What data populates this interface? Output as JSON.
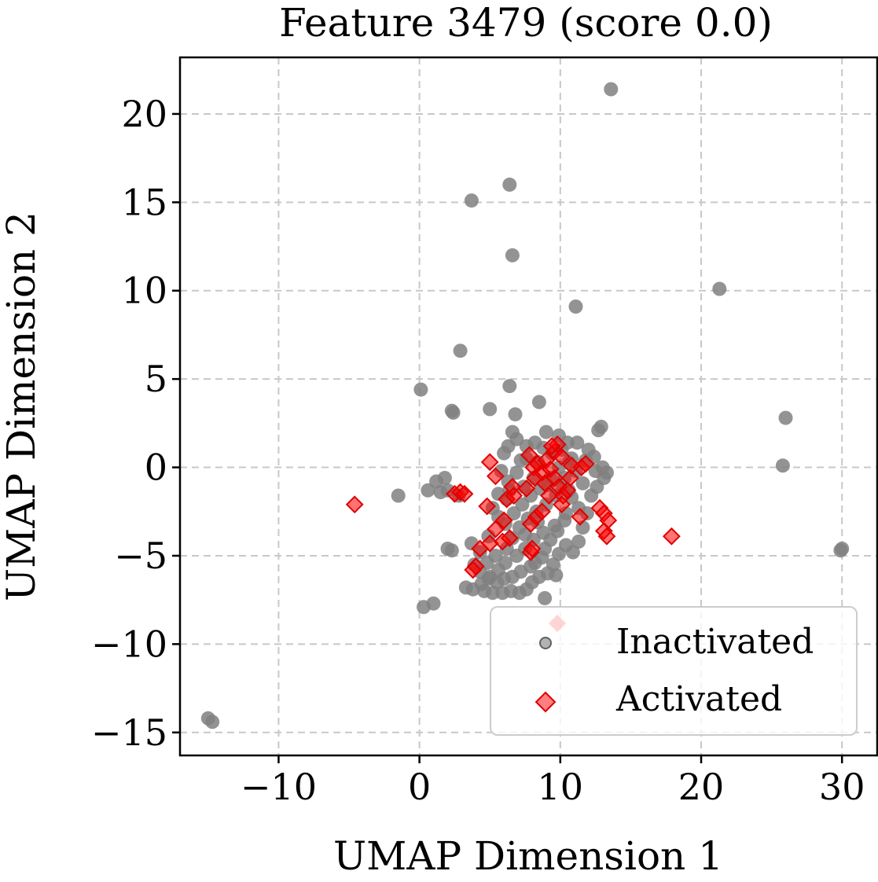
{
  "chart_data": {
    "type": "scatter",
    "title": "Feature 3479 (score 0.0)",
    "xlabel": "UMAP Dimension 1",
    "ylabel": "UMAP Dimension 2",
    "xlim": [
      -17,
      32.5
    ],
    "ylim": [
      -16.3,
      23.2
    ],
    "xticks": [
      -10,
      0,
      10,
      20,
      30
    ],
    "yticks": [
      -15,
      -10,
      -5,
      0,
      5,
      10,
      15,
      20
    ],
    "xtick_labels": [
      "−10",
      "0",
      "10",
      "20",
      "30"
    ],
    "ytick_labels": [
      "−15",
      "−10",
      "−5",
      "0",
      "5",
      "10",
      "15",
      "20"
    ],
    "grid": true,
    "legend_position": "lower-right",
    "series": [
      {
        "name": "Inactivated",
        "marker": "circle",
        "color": "#808080",
        "points": [
          [
            13.6,
            21.4
          ],
          [
            6.4,
            16.0
          ],
          [
            3.7,
            15.1
          ],
          [
            6.6,
            12.0
          ],
          [
            21.3,
            10.1
          ],
          [
            11.1,
            9.1
          ],
          [
            2.9,
            6.6
          ],
          [
            0.1,
            4.4
          ],
          [
            6.4,
            4.6
          ],
          [
            2.3,
            3.2
          ],
          [
            2.4,
            3.1
          ],
          [
            5.0,
            3.3
          ],
          [
            6.8,
            3.0
          ],
          [
            8.5,
            3.7
          ],
          [
            26.0,
            2.8
          ],
          [
            25.8,
            0.1
          ],
          [
            30.0,
            -4.6
          ],
          [
            29.9,
            -4.7
          ],
          [
            -15.0,
            -14.2
          ],
          [
            -14.7,
            -14.4
          ],
          [
            -1.5,
            -1.6
          ],
          [
            0.3,
            -7.9
          ],
          [
            1.0,
            -7.7
          ],
          [
            9.7,
            -6.1
          ],
          [
            8.9,
            -7.4
          ],
          [
            2.0,
            -4.6
          ],
          [
            2.3,
            -4.7
          ],
          [
            3.7,
            -4.3
          ],
          [
            1.8,
            -0.6
          ],
          [
            1.2,
            -0.8
          ],
          [
            0.6,
            -1.3
          ],
          [
            1.5,
            -1.4
          ],
          [
            2.0,
            -1.3
          ],
          [
            2.8,
            -1.6
          ],
          [
            12.7,
            2.1
          ],
          [
            12.9,
            2.3
          ],
          [
            13.0,
            0.0
          ],
          [
            12.5,
            -0.2
          ],
          [
            13.3,
            -0.3
          ],
          [
            12.0,
            1.0
          ],
          [
            11.2,
            1.4
          ],
          [
            10.8,
            0.5
          ],
          [
            6.6,
            2.0
          ],
          [
            6.9,
            1.6
          ],
          [
            6.3,
            1.2
          ],
          [
            7.2,
            0.4
          ],
          [
            6.0,
            0.8
          ],
          [
            5.8,
            -0.2
          ],
          [
            6.3,
            -0.8
          ],
          [
            7.4,
            -1.1
          ],
          [
            8.1,
            -0.6
          ],
          [
            9.1,
            -1.0
          ],
          [
            10.3,
            -0.6
          ],
          [
            10.8,
            -1.7
          ],
          [
            11.3,
            -2.3
          ],
          [
            10.4,
            -2.6
          ],
          [
            9.6,
            -3.3
          ],
          [
            8.8,
            -3.7
          ],
          [
            8.1,
            -4.1
          ],
          [
            7.5,
            -4.6
          ],
          [
            6.9,
            -5.0
          ],
          [
            6.1,
            -5.4
          ],
          [
            5.6,
            -5.8
          ],
          [
            5.0,
            -6.2
          ],
          [
            4.4,
            -6.6
          ],
          [
            3.8,
            -6.9
          ],
          [
            3.3,
            -6.8
          ],
          [
            4.6,
            -7.0
          ],
          [
            5.2,
            -7.1
          ],
          [
            5.9,
            -7.1
          ],
          [
            6.5,
            -7.0
          ],
          [
            7.1,
            -7.1
          ],
          [
            7.6,
            -6.9
          ],
          [
            8.0,
            -6.5
          ],
          [
            8.5,
            -6.2
          ],
          [
            8.2,
            -5.4
          ],
          [
            7.9,
            -5.6
          ],
          [
            7.2,
            -5.9
          ],
          [
            6.6,
            -6.2
          ],
          [
            6.0,
            -6.3
          ],
          [
            5.5,
            -6.5
          ],
          [
            4.9,
            -6.3
          ],
          [
            4.3,
            -5.9
          ],
          [
            4.8,
            -5.4
          ],
          [
            5.4,
            -5.0
          ],
          [
            6.2,
            -4.6
          ],
          [
            6.6,
            -4.0
          ],
          [
            7.1,
            -3.4
          ],
          [
            7.7,
            -2.9
          ],
          [
            8.3,
            -2.5
          ],
          [
            9.0,
            -2.1
          ],
          [
            9.7,
            -1.6
          ],
          [
            10.2,
            -1.1
          ],
          [
            11.6,
            -0.9
          ],
          [
            12.2,
            -1.6
          ],
          [
            11.9,
            -2.6
          ],
          [
            11.6,
            -3.4
          ],
          [
            11.3,
            -4.2
          ],
          [
            10.9,
            -4.8
          ],
          [
            10.4,
            -4.4
          ],
          [
            9.9,
            -4.9
          ],
          [
            9.5,
            -5.5
          ],
          [
            9.1,
            -6.0
          ],
          [
            8.7,
            -5.1
          ],
          [
            8.9,
            -4.6
          ],
          [
            9.3,
            -4.1
          ],
          [
            9.8,
            -3.6
          ],
          [
            10.3,
            -3.0
          ],
          [
            5.2,
            -2.3
          ],
          [
            5.6,
            -2.8
          ],
          [
            6.1,
            -3.2
          ],
          [
            6.7,
            -2.6
          ],
          [
            7.3,
            -2.1
          ],
          [
            7.9,
            -1.6
          ],
          [
            8.6,
            -1.2
          ],
          [
            9.3,
            -0.6
          ],
          [
            9.9,
            0.0
          ],
          [
            10.6,
            0.3
          ],
          [
            8.8,
            1.1
          ],
          [
            9.4,
            0.8
          ],
          [
            10.1,
            1.0
          ],
          [
            7.6,
            1.2
          ],
          [
            6.2,
            -1.8
          ],
          [
            4.9,
            -3.9
          ],
          [
            4.3,
            -4.8
          ],
          [
            3.9,
            -5.5
          ],
          [
            11.8,
            0.4
          ],
          [
            12.4,
            0.6
          ],
          [
            13.1,
            -0.6
          ],
          [
            12.6,
            -1.1
          ],
          [
            11.1,
            -0.2
          ],
          [
            10.6,
            -1.3
          ],
          [
            8.4,
            -3.1
          ],
          [
            7.5,
            -3.8
          ],
          [
            6.4,
            -1.3
          ],
          [
            5.6,
            -1.5
          ],
          [
            6.9,
            -0.3
          ],
          [
            7.6,
            0.5
          ],
          [
            8.2,
            1.4
          ],
          [
            9.0,
            2.0
          ],
          [
            9.9,
            1.8
          ],
          [
            10.5,
            1.4
          ],
          [
            8.4,
            0.3
          ]
        ]
      },
      {
        "name": "Activated",
        "marker": "diamond",
        "color": "#ff0000",
        "points": [
          [
            -4.6,
            -2.1
          ],
          [
            17.9,
            -3.9
          ],
          [
            2.5,
            -1.5
          ],
          [
            2.9,
            -1.4
          ],
          [
            3.2,
            -1.5
          ],
          [
            4.8,
            -2.2
          ],
          [
            5.0,
            0.3
          ],
          [
            5.4,
            -0.5
          ],
          [
            5.4,
            -3.5
          ],
          [
            5.0,
            -4.3
          ],
          [
            4.0,
            -5.6
          ],
          [
            3.8,
            -5.8
          ],
          [
            4.3,
            -4.6
          ],
          [
            5.9,
            -4.2
          ],
          [
            6.4,
            -4.0
          ],
          [
            6.2,
            -1.8
          ],
          [
            6.6,
            -1.1
          ],
          [
            6.7,
            -1.6
          ],
          [
            6.0,
            -3.0
          ],
          [
            7.9,
            -3.2
          ],
          [
            8.3,
            -2.8
          ],
          [
            8.7,
            -2.5
          ],
          [
            7.9,
            -4.8
          ],
          [
            8.0,
            -4.6
          ],
          [
            7.8,
            0.7
          ],
          [
            8.1,
            0.0
          ],
          [
            8.4,
            0.2
          ],
          [
            8.7,
            -0.3
          ],
          [
            9.0,
            0.4
          ],
          [
            9.3,
            -0.1
          ],
          [
            9.6,
            0.9
          ],
          [
            9.8,
            1.3
          ],
          [
            10.1,
            0.6
          ],
          [
            9.6,
            -0.6
          ],
          [
            9.9,
            -1.1
          ],
          [
            10.2,
            -1.6
          ],
          [
            10.5,
            -1.3
          ],
          [
            10.7,
            -0.6
          ],
          [
            10.1,
            -2.1
          ],
          [
            11.5,
            0.0
          ],
          [
            11.8,
            0.2
          ],
          [
            11.4,
            -2.8
          ],
          [
            12.8,
            -2.3
          ],
          [
            13.1,
            -2.6
          ],
          [
            13.4,
            -3.0
          ],
          [
            13.1,
            -3.6
          ],
          [
            13.3,
            -3.9
          ],
          [
            8.9,
            -0.9
          ],
          [
            8.2,
            -0.6
          ],
          [
            7.6,
            -1.2
          ],
          [
            9.2,
            -1.6
          ],
          [
            9.4,
            1.2
          ],
          [
            10.8,
            0.1
          ]
        ]
      }
    ],
    "legend": [
      "Inactivated",
      "Activated"
    ]
  }
}
